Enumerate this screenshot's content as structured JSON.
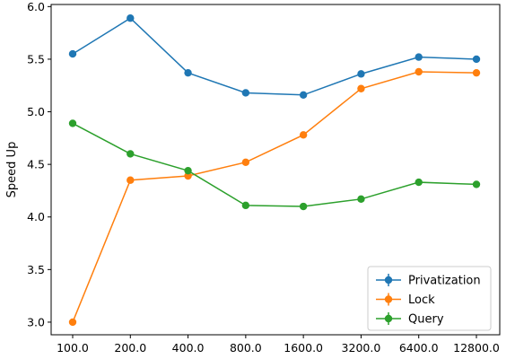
{
  "chart_data": {
    "type": "line",
    "title": "",
    "xlabel": "",
    "ylabel": "Speed Up",
    "categories": [
      "100.0",
      "200.0",
      "400.0",
      "800.0",
      "1600.0",
      "3200.0",
      "6400.0",
      "12800.0"
    ],
    "x_scale": "log2",
    "ylim": [
      2.88,
      6.02
    ],
    "yticks": [
      "3.0",
      "3.5",
      "4.0",
      "4.5",
      "5.0",
      "5.5",
      "6.0"
    ],
    "ytick_values": [
      3.0,
      3.5,
      4.0,
      4.5,
      5.0,
      5.5,
      6.0
    ],
    "grid": false,
    "legend": {
      "position": "lower right",
      "entries": [
        "Privatization",
        "Lock",
        "Query"
      ]
    },
    "series": [
      {
        "name": "Privatization",
        "color": "#1f77b4",
        "marker": "circle-with-errorbar",
        "values": [
          5.55,
          5.89,
          5.37,
          5.18,
          5.16,
          5.36,
          5.52,
          5.5
        ]
      },
      {
        "name": "Lock",
        "color": "#ff7f0e",
        "marker": "circle-with-errorbar",
        "values": [
          3.0,
          4.35,
          4.39,
          4.52,
          4.78,
          5.22,
          5.38,
          5.37
        ]
      },
      {
        "name": "Query",
        "color": "#2ca02c",
        "marker": "circle-with-errorbar",
        "values": [
          4.89,
          4.6,
          4.44,
          4.11,
          4.1,
          4.17,
          4.33,
          4.31
        ]
      }
    ]
  }
}
